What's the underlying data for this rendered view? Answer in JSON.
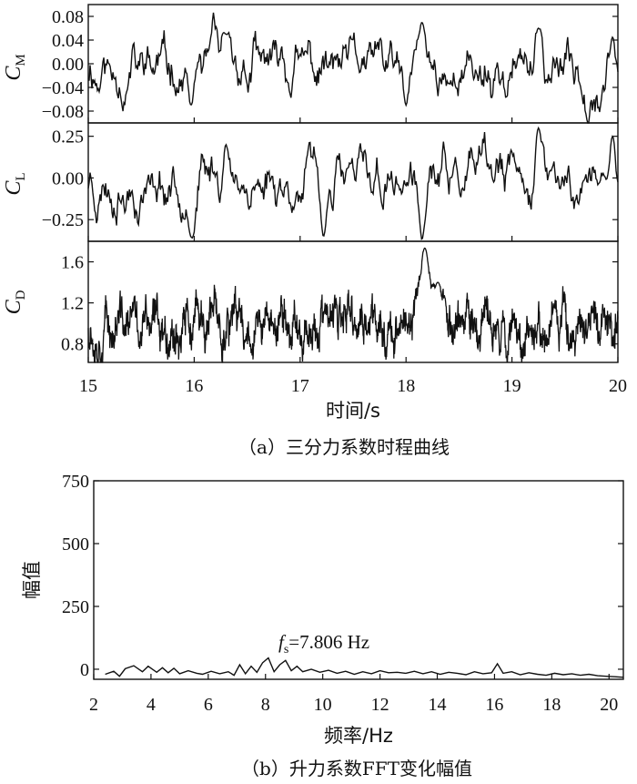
{
  "chart_data": [
    {
      "type": "line",
      "title": "",
      "xlabel": "时间/s",
      "ylabel": "C",
      "ylabel_sub": "M",
      "xlim": [
        15,
        20
      ],
      "ylim": [
        -0.1,
        0.1
      ],
      "yticks": [
        -0.08,
        -0.04,
        0.0,
        0.04,
        0.08
      ],
      "ytick_labels": [
        "−0.08",
        "−0.04",
        "0.00",
        "0.04",
        "0.08"
      ],
      "series": [
        {
          "name": "CM",
          "amplitude": 0.03,
          "baseline": -0.01
        }
      ],
      "features": [
        {
          "x": 15.97,
          "y": -0.07
        },
        {
          "x": 16.3,
          "y": 0.05
        },
        {
          "x": 18.15,
          "y": 0.07
        },
        {
          "x": 18.0,
          "y": -0.07
        },
        {
          "x": 19.25,
          "y": 0.06
        },
        {
          "x": 19.95,
          "y": 0.045
        }
      ]
    },
    {
      "type": "line",
      "title": "",
      "xlabel": "时间/s",
      "ylabel": "C",
      "ylabel_sub": "L",
      "xlim": [
        15,
        20
      ],
      "ylim": [
        -0.38,
        0.33
      ],
      "yticks": [
        -0.25,
        0.0,
        0.25
      ],
      "ytick_labels": [
        "−0.25",
        "0.00",
        "0.25"
      ],
      "series": [
        {
          "name": "CL",
          "amplitude": 0.1,
          "baseline": -0.02
        }
      ],
      "features": [
        {
          "x": 15.98,
          "y": -0.36
        },
        {
          "x": 16.3,
          "y": 0.2
        },
        {
          "x": 17.22,
          "y": -0.35
        },
        {
          "x": 18.15,
          "y": -0.37
        },
        {
          "x": 19.25,
          "y": 0.3
        },
        {
          "x": 19.95,
          "y": 0.25
        }
      ]
    },
    {
      "type": "line",
      "title": "",
      "xlabel": "时间/s",
      "ylabel": "C",
      "ylabel_sub": "D",
      "xlim": [
        15,
        20
      ],
      "ylim": [
        0.62,
        1.8
      ],
      "yticks": [
        0.8,
        1.2,
        1.6
      ],
      "ytick_labels": [
        "0.8",
        "1.2",
        "1.6"
      ],
      "xticks": [
        15,
        16,
        17,
        18,
        19,
        20
      ],
      "xtick_labels": [
        "15",
        "16",
        "17",
        "18",
        "19",
        "20"
      ],
      "series": [
        {
          "name": "CD",
          "amplitude": 0.14,
          "baseline": 0.98
        }
      ],
      "features": [
        {
          "x": 18.18,
          "y": 1.75
        },
        {
          "x": 18.3,
          "y": 1.4
        }
      ]
    },
    {
      "type": "line",
      "title": "",
      "xlabel": "频率/Hz",
      "ylabel": "幅值",
      "xlim": [
        2,
        20.5
      ],
      "ylim": [
        -40,
        750
      ],
      "yticks": [
        0,
        250,
        500,
        750
      ],
      "ytick_labels": [
        "0",
        "250",
        "500",
        "750"
      ],
      "xticks": [
        2,
        4,
        6,
        8,
        10,
        12,
        14,
        16,
        18,
        20
      ],
      "xtick_labels": [
        "2",
        "4",
        "6",
        "8",
        "10",
        "12",
        "14",
        "16",
        "18",
        "20"
      ],
      "series": [
        {
          "name": "FFT",
          "x": [
            2.4,
            2.7,
            2.9,
            3.1,
            3.4,
            3.7,
            3.9,
            4.2,
            4.4,
            4.6,
            4.8,
            5.0,
            5.3,
            5.6,
            5.8,
            6.1,
            6.4,
            6.7,
            6.9,
            7.1,
            7.3,
            7.5,
            7.7,
            7.9,
            8.1,
            8.3,
            8.5,
            8.7,
            8.9,
            9.1,
            9.3,
            9.6,
            9.9,
            10.2,
            10.5,
            10.8,
            11.1,
            11.4,
            11.7,
            12.0,
            12.3,
            12.6,
            12.9,
            13.2,
            13.5,
            13.8,
            14.1,
            14.4,
            14.7,
            15.0,
            15.3,
            15.6,
            15.9,
            16.1,
            16.3,
            16.6,
            16.9,
            17.2,
            17.5,
            17.8,
            18.1,
            18.4,
            18.7,
            19.0,
            19.3,
            19.6,
            19.9,
            20.2,
            20.5
          ],
          "values": [
            -20,
            -8,
            -28,
            2,
            14,
            -10,
            12,
            -12,
            6,
            -14,
            4,
            -18,
            -6,
            -16,
            -20,
            -8,
            -18,
            -10,
            -24,
            18,
            -18,
            12,
            -12,
            26,
            45,
            -10,
            18,
            35,
            -6,
            12,
            -10,
            0,
            -12,
            -4,
            -16,
            -8,
            -20,
            -10,
            -18,
            -6,
            -14,
            -12,
            -16,
            -8,
            -18,
            -10,
            -20,
            -12,
            -16,
            -22,
            -10,
            -18,
            -14,
            22,
            -16,
            -10,
            -22,
            -14,
            -20,
            -24,
            -16,
            -22,
            -18,
            -24,
            -20,
            -26,
            -28,
            -30,
            -32
          ]
        }
      ],
      "annotation": {
        "text": "=7.806 Hz",
        "symbol": "f",
        "sub": "s",
        "x": 8.1,
        "y": 45
      }
    }
  ],
  "captions": {
    "a": "（a）三分力系数时程曲线",
    "b": "（b）升力系数FFT变化幅值"
  }
}
